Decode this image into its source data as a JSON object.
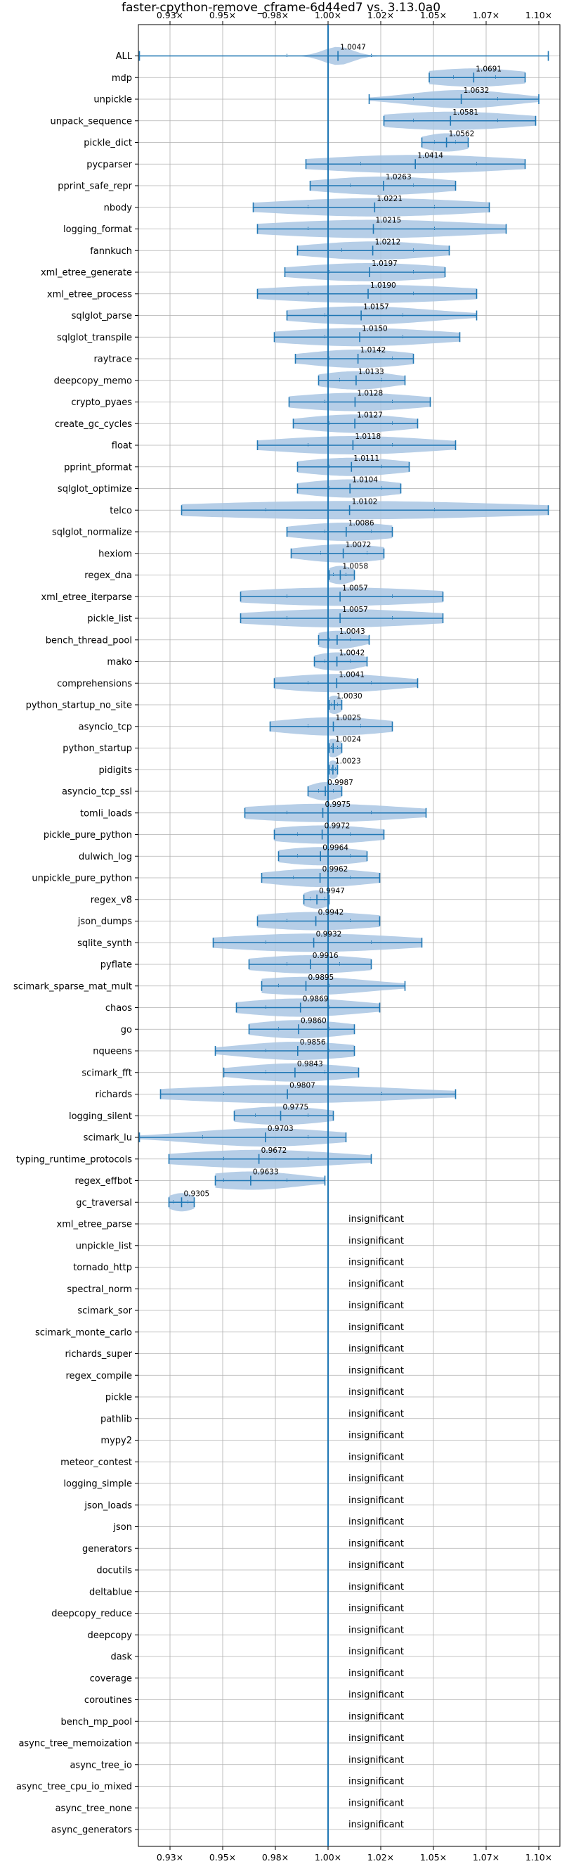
{
  "chart_data": {
    "type": "violin",
    "title": "faster-cpython-remove_cframe-6d44ed7 vs. 3.13.0a0",
    "xlim": [
      0.91,
      1.11
    ],
    "x_ticks": [
      0.925,
      0.95,
      0.975,
      1.0,
      1.025,
      1.05,
      1.075,
      1.1
    ],
    "x_tick_labels": [
      "0.93×",
      "0.95×",
      "0.98×",
      "1.00×",
      "1.02×",
      "1.05×",
      "1.07×",
      "1.10×"
    ],
    "reference_line": 1.0,
    "colors": {
      "violin": "#a9c6e3",
      "line": "#1f77b4",
      "grid": "#b0b0b0"
    },
    "insignificant_label": "insignificant",
    "benchmarks": [
      {
        "name": "ALL",
        "mean": 1.0047,
        "min": 0.9105,
        "max": 1.1045,
        "q1": 0.9805,
        "q3": 1.0205,
        "spread": 0.007
      },
      {
        "name": "mdp",
        "mean": 1.0691,
        "min": 1.048,
        "max": 1.0935,
        "q1": 1.0595,
        "q3": 1.0795,
        "spread": 0.026
      },
      {
        "name": "unpickle",
        "mean": 1.0632,
        "min": 1.0195,
        "max": 1.1,
        "q1": 1.0405,
        "q3": 1.0805,
        "spread": 0.024
      },
      {
        "name": "unpack_sequence",
        "mean": 1.0581,
        "min": 1.0265,
        "max": 1.0985,
        "q1": 1.0405,
        "q3": 1.0805,
        "spread": 0.036
      },
      {
        "name": "pickle_dict",
        "mean": 1.0562,
        "min": 1.0445,
        "max": 1.0665,
        "q1": 1.0505,
        "q3": 1.0605,
        "spread": 0.012
      },
      {
        "name": "pycparser",
        "mean": 1.0414,
        "min": 0.9895,
        "max": 1.0935,
        "q1": 1.0155,
        "q3": 1.0705,
        "spread": 0.048
      },
      {
        "name": "pprint_safe_repr",
        "mean": 1.0263,
        "min": 0.9915,
        "max": 1.0605,
        "q1": 1.0105,
        "q3": 1.0405,
        "spread": 0.032
      },
      {
        "name": "nbody",
        "mean": 1.0221,
        "min": 0.9645,
        "max": 1.0765,
        "q1": 0.9905,
        "q3": 1.0505,
        "spread": 0.05
      },
      {
        "name": "logging_format",
        "mean": 1.0215,
        "min": 0.9665,
        "max": 1.0845,
        "q1": 0.9905,
        "q3": 1.0505,
        "spread": 0.052
      },
      {
        "name": "fannkuch",
        "mean": 1.0212,
        "min": 0.9855,
        "max": 1.0575,
        "q1": 1.0065,
        "q3": 1.0405,
        "spread": 0.032
      },
      {
        "name": "xml_etree_generate",
        "mean": 1.0197,
        "min": 0.9795,
        "max": 1.0555,
        "q1": 1.0005,
        "q3": 1.0405,
        "spread": 0.036
      },
      {
        "name": "xml_etree_process",
        "mean": 1.019,
        "min": 0.9665,
        "max": 1.0705,
        "q1": 0.9905,
        "q3": 1.0405,
        "spread": 0.05
      },
      {
        "name": "sqlglot_parse",
        "mean": 1.0157,
        "min": 0.9805,
        "max": 1.0705,
        "q1": 0.9985,
        "q3": 1.0355,
        "spread": 0.034
      },
      {
        "name": "sqlglot_transpile",
        "mean": 1.015,
        "min": 0.9745,
        "max": 1.0625,
        "q1": 0.9985,
        "q3": 1.0355,
        "spread": 0.04
      },
      {
        "name": "raytrace",
        "mean": 1.0142,
        "min": 0.9845,
        "max": 1.0405,
        "q1": 1.0005,
        "q3": 1.0305,
        "spread": 0.026
      },
      {
        "name": "deepcopy_memo",
        "mean": 1.0133,
        "min": 0.9955,
        "max": 1.0365,
        "q1": 1.0055,
        "q3": 1.0255,
        "spread": 0.019
      },
      {
        "name": "crypto_pyaes",
        "mean": 1.0128,
        "min": 0.9815,
        "max": 1.0485,
        "q1": 0.9985,
        "q3": 1.0305,
        "spread": 0.032
      },
      {
        "name": "create_gc_cycles",
        "mean": 1.0127,
        "min": 0.9835,
        "max": 1.0425,
        "q1": 1.0005,
        "q3": 1.0305,
        "spread": 0.026
      },
      {
        "name": "float",
        "mean": 1.0118,
        "min": 0.9665,
        "max": 1.0605,
        "q1": 0.9905,
        "q3": 1.0305,
        "spread": 0.04
      },
      {
        "name": "pprint_pformat",
        "mean": 1.0111,
        "min": 0.9855,
        "max": 1.0385,
        "q1": 1.0005,
        "q3": 1.0255,
        "spread": 0.026
      },
      {
        "name": "sqlglot_optimize",
        "mean": 1.0104,
        "min": 0.9855,
        "max": 1.0345,
        "q1": 1.0005,
        "q3": 1.0255,
        "spread": 0.024
      },
      {
        "name": "telco",
        "mean": 1.0102,
        "min": 0.9305,
        "max": 1.1045,
        "q1": 0.9705,
        "q3": 1.0505,
        "spread": 0.085
      },
      {
        "name": "sqlglot_normalize",
        "mean": 1.0086,
        "min": 0.9805,
        "max": 1.0305,
        "q1": 0.9985,
        "q3": 1.0205,
        "spread": 0.026
      },
      {
        "name": "hexiom",
        "mean": 1.0072,
        "min": 0.9825,
        "max": 1.0265,
        "q1": 0.9965,
        "q3": 1.0185,
        "spread": 0.022
      },
      {
        "name": "regex_dna",
        "mean": 1.0058,
        "min": 1.0005,
        "max": 1.0125,
        "q1": 1.0025,
        "q3": 1.0085,
        "spread": 0.007
      },
      {
        "name": "xml_etree_iterparse",
        "mean": 1.0057,
        "min": 0.9585,
        "max": 1.0545,
        "q1": 0.9805,
        "q3": 1.0305,
        "spread": 0.05
      },
      {
        "name": "pickle_list",
        "mean": 1.0057,
        "min": 0.9585,
        "max": 1.0545,
        "q1": 0.9805,
        "q3": 1.0305,
        "spread": 0.045
      },
      {
        "name": "bench_thread_pool",
        "mean": 1.0043,
        "min": 0.9955,
        "max": 1.0195,
        "q1": 1.0005,
        "q3": 1.0105,
        "spread": 0.012
      },
      {
        "name": "mako",
        "mean": 1.0042,
        "min": 0.9935,
        "max": 1.0185,
        "q1": 0.9985,
        "q3": 1.0105,
        "spread": 0.012
      },
      {
        "name": "comprehensions",
        "mean": 1.0041,
        "min": 0.9745,
        "max": 1.0425,
        "q1": 0.9905,
        "q3": 1.0205,
        "spread": 0.03
      },
      {
        "name": "python_startup_no_site",
        "mean": 1.003,
        "min": 1.0005,
        "max": 1.0065,
        "q1": 1.0015,
        "q3": 1.0045,
        "spread": 0.004
      },
      {
        "name": "asyncio_tcp",
        "mean": 1.0025,
        "min": 0.9725,
        "max": 1.0305,
        "q1": 0.9905,
        "q3": 1.0155,
        "spread": 0.028
      },
      {
        "name": "python_startup",
        "mean": 1.0024,
        "min": 1.0005,
        "max": 1.0065,
        "q1": 1.0015,
        "q3": 1.0045,
        "spread": 0.004
      },
      {
        "name": "pidigits",
        "mean": 1.0023,
        "min": 1.0005,
        "max": 1.0045,
        "q1": 1.0015,
        "q3": 1.0035,
        "spread": 0.003
      },
      {
        "name": "asyncio_tcp_ssl",
        "mean": 0.9987,
        "min": 0.9905,
        "max": 1.0065,
        "q1": 0.9955,
        "q3": 1.0025,
        "spread": 0.008
      },
      {
        "name": "tomli_loads",
        "mean": 0.9975,
        "min": 0.9605,
        "max": 1.0465,
        "q1": 0.9805,
        "q3": 1.0205,
        "spread": 0.04
      },
      {
        "name": "pickle_pure_python",
        "mean": 0.9972,
        "min": 0.9745,
        "max": 1.0265,
        "q1": 0.9855,
        "q3": 1.0105,
        "spread": 0.028
      },
      {
        "name": "dulwich_log",
        "mean": 0.9964,
        "min": 0.9765,
        "max": 1.0185,
        "q1": 0.9855,
        "q3": 1.0105,
        "spread": 0.022
      },
      {
        "name": "unpickle_pure_python",
        "mean": 0.9962,
        "min": 0.9685,
        "max": 1.0245,
        "q1": 0.9835,
        "q3": 1.0105,
        "spread": 0.026
      },
      {
        "name": "regex_v8",
        "mean": 0.9947,
        "min": 0.9885,
        "max": 1.0005,
        "q1": 0.9915,
        "q3": 0.9985,
        "spread": 0.007
      },
      {
        "name": "json_dumps",
        "mean": 0.9942,
        "min": 0.9665,
        "max": 1.0245,
        "q1": 0.9805,
        "q3": 1.0105,
        "spread": 0.032
      },
      {
        "name": "sqlite_synth",
        "mean": 0.9932,
        "min": 0.9455,
        "max": 1.0445,
        "q1": 0.9705,
        "q3": 1.0205,
        "spread": 0.045
      },
      {
        "name": "pyflate",
        "mean": 0.9916,
        "min": 0.9625,
        "max": 1.0205,
        "q1": 0.9805,
        "q3": 1.0055,
        "spread": 0.03
      },
      {
        "name": "scimark_sparse_mat_mult",
        "mean": 0.9895,
        "min": 0.9685,
        "max": 1.0365,
        "q1": 0.9765,
        "q3": 1.0005,
        "spread": 0.03
      },
      {
        "name": "chaos",
        "mean": 0.9869,
        "min": 0.9565,
        "max": 1.0245,
        "q1": 0.9705,
        "q3": 1.0005,
        "spread": 0.03
      },
      {
        "name": "go",
        "mean": 0.986,
        "min": 0.9625,
        "max": 1.0125,
        "q1": 0.9765,
        "q3": 1.0005,
        "spread": 0.024
      },
      {
        "name": "nqueens",
        "mean": 0.9856,
        "min": 0.9465,
        "max": 1.0125,
        "q1": 0.9705,
        "q3": 1.0005,
        "spread": 0.028
      },
      {
        "name": "scimark_fft",
        "mean": 0.9843,
        "min": 0.9505,
        "max": 1.0145,
        "q1": 0.9705,
        "q3": 0.9985,
        "spread": 0.028
      },
      {
        "name": "richards",
        "mean": 0.9807,
        "min": 0.9205,
        "max": 1.0605,
        "q1": 0.9505,
        "q3": 1.0255,
        "spread": 0.056
      },
      {
        "name": "logging_silent",
        "mean": 0.9775,
        "min": 0.9555,
        "max": 1.0025,
        "q1": 0.9655,
        "q3": 0.9905,
        "spread": 0.024
      },
      {
        "name": "scimark_lu",
        "mean": 0.9703,
        "min": 0.9105,
        "max": 1.0085,
        "q1": 0.9405,
        "q3": 0.9905,
        "spread": 0.034
      },
      {
        "name": "typing_runtime_protocols",
        "mean": 0.9672,
        "min": 0.9245,
        "max": 1.0205,
        "q1": 0.9505,
        "q3": 0.9905,
        "spread": 0.04
      },
      {
        "name": "regex_effbot",
        "mean": 0.9633,
        "min": 0.9465,
        "max": 0.9985,
        "q1": 0.9505,
        "q3": 0.9805,
        "spread": 0.024
      },
      {
        "name": "gc_traversal",
        "mean": 0.9305,
        "min": 0.9245,
        "max": 0.9365,
        "q1": 0.9265,
        "q3": 0.9335,
        "spread": 0.007
      },
      {
        "name": "xml_etree_parse",
        "insignificant": true
      },
      {
        "name": "unpickle_list",
        "insignificant": true
      },
      {
        "name": "tornado_http",
        "insignificant": true
      },
      {
        "name": "spectral_norm",
        "insignificant": true
      },
      {
        "name": "scimark_sor",
        "insignificant": true
      },
      {
        "name": "scimark_monte_carlo",
        "insignificant": true
      },
      {
        "name": "richards_super",
        "insignificant": true
      },
      {
        "name": "regex_compile",
        "insignificant": true
      },
      {
        "name": "pickle",
        "insignificant": true
      },
      {
        "name": "pathlib",
        "insignificant": true
      },
      {
        "name": "mypy2",
        "insignificant": true
      },
      {
        "name": "meteor_contest",
        "insignificant": true
      },
      {
        "name": "logging_simple",
        "insignificant": true
      },
      {
        "name": "json_loads",
        "insignificant": true
      },
      {
        "name": "json",
        "insignificant": true
      },
      {
        "name": "generators",
        "insignificant": true
      },
      {
        "name": "docutils",
        "insignificant": true
      },
      {
        "name": "deltablue",
        "insignificant": true
      },
      {
        "name": "deepcopy_reduce",
        "insignificant": true
      },
      {
        "name": "deepcopy",
        "insignificant": true
      },
      {
        "name": "dask",
        "insignificant": true
      },
      {
        "name": "coverage",
        "insignificant": true
      },
      {
        "name": "coroutines",
        "insignificant": true
      },
      {
        "name": "bench_mp_pool",
        "insignificant": true
      },
      {
        "name": "async_tree_memoization",
        "insignificant": true
      },
      {
        "name": "async_tree_io",
        "insignificant": true
      },
      {
        "name": "async_tree_cpu_io_mixed",
        "insignificant": true
      },
      {
        "name": "async_tree_none",
        "insignificant": true
      },
      {
        "name": "async_generators",
        "insignificant": true
      }
    ]
  }
}
